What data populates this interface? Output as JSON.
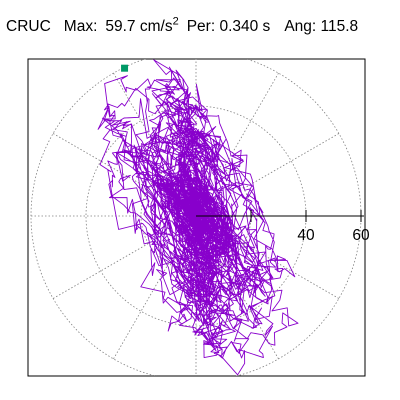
{
  "header": {
    "station": "CRUC",
    "max_label": "Max:",
    "max_value": "59.7",
    "max_unit": "cm/s",
    "max_unit_power": "2",
    "period_label": "Per:",
    "period_value": "0.340 s",
    "angle_label": "Ang:",
    "angle_value": "115.8"
  },
  "chart_data": {
    "type": "line",
    "coordinate_system": "polar",
    "radial_range": [
      0,
      60
    ],
    "radial_ticks": [
      20,
      40,
      60
    ],
    "radial_tick_labels": [
      "40",
      "60"
    ],
    "angular_grid_step_deg": 30,
    "grid": true,
    "series": [
      {
        "color": "#8800cc",
        "peak_point": {
          "r": 59.7,
          "angle_deg": 115.8
        },
        "peak_marker_color": "#009966"
      }
    ]
  }
}
